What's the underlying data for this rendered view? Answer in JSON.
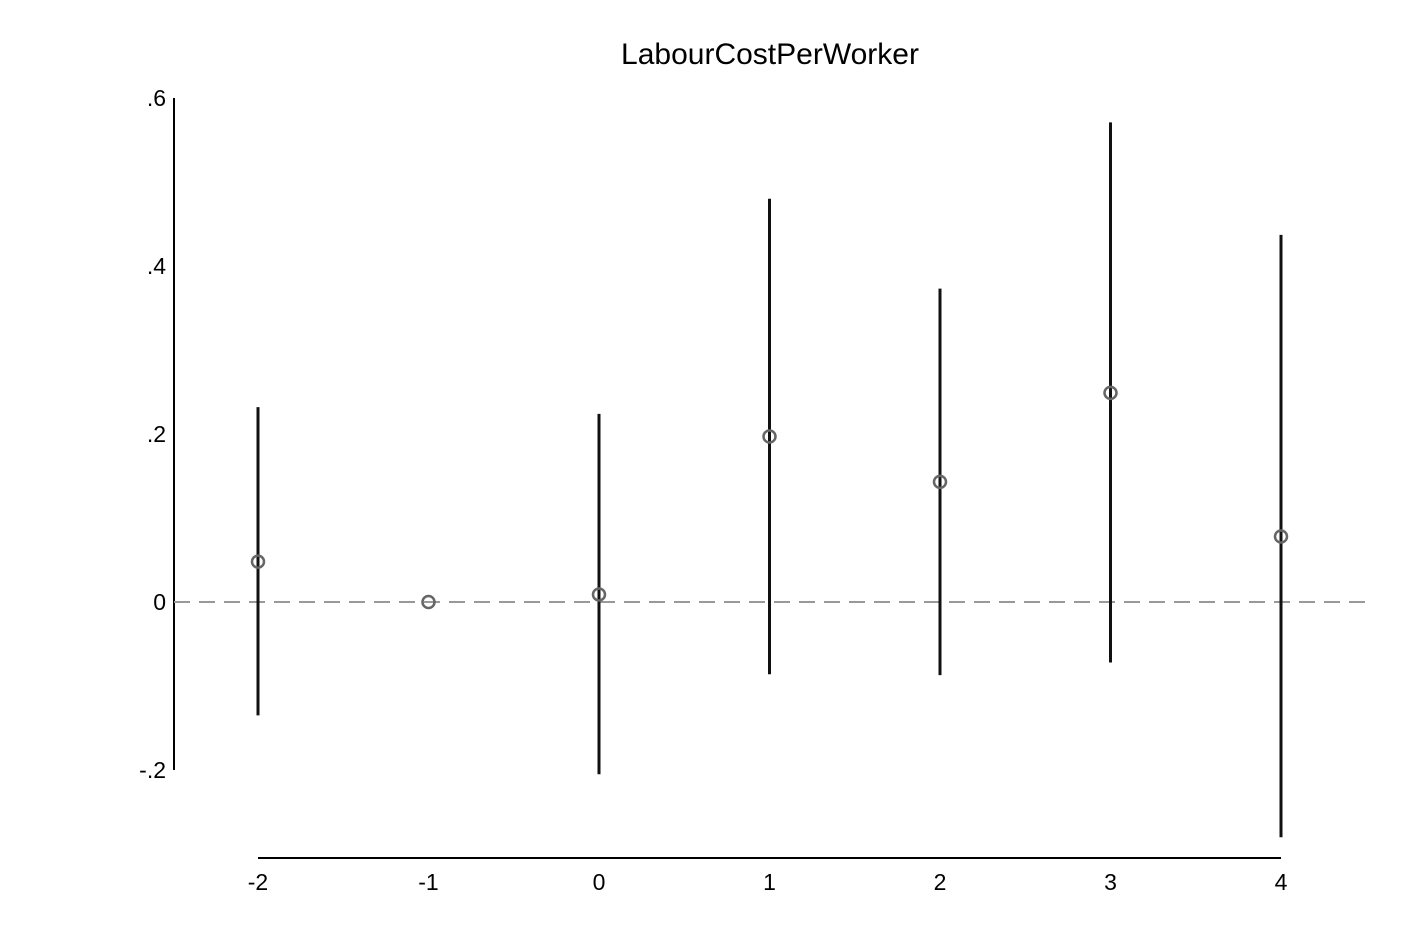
{
  "chart_data": {
    "type": "scatter",
    "title": "LabourCostPerWorker",
    "xlabel": "",
    "ylabel": "",
    "x_ticks": [
      "-2",
      "-1",
      "0",
      "1",
      "2",
      "3",
      "4"
    ],
    "y_ticks": [
      ".6",
      ".4",
      ".2",
      "0",
      "-.2"
    ],
    "y_tick_values": [
      0.6,
      0.4,
      0.2,
      0,
      -0.2
    ],
    "xlim": [
      -2,
      4
    ],
    "ylim": [
      -0.2,
      0.6
    ],
    "reference_line": {
      "y": 0,
      "style": "dashed",
      "color": "#999999"
    },
    "points": [
      {
        "x": -2,
        "estimate": 0.048,
        "ci_low": -0.135,
        "ci_high": 0.232
      },
      {
        "x": -1,
        "estimate": 0.0,
        "ci_low": null,
        "ci_high": null
      },
      {
        "x": 0,
        "estimate": 0.009,
        "ci_low": -0.205,
        "ci_high": 0.224
      },
      {
        "x": 1,
        "estimate": 0.197,
        "ci_low": -0.086,
        "ci_high": 0.48
      },
      {
        "x": 2,
        "estimate": 0.143,
        "ci_low": -0.087,
        "ci_high": 0.373
      },
      {
        "x": 3,
        "estimate": 0.249,
        "ci_low": -0.072,
        "ci_high": 0.571
      },
      {
        "x": 4,
        "estimate": 0.078,
        "ci_low": -0.28,
        "ci_high": 0.437
      }
    ],
    "colors": {
      "marker": "#666666",
      "ci_line": "#111111",
      "axis": "#000000"
    }
  }
}
